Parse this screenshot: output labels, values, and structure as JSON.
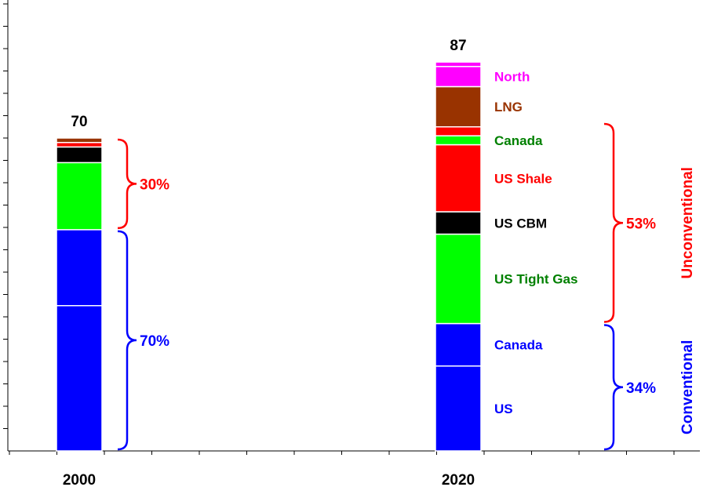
{
  "chart_data": {
    "type": "bar",
    "stacked": true,
    "categories": [
      "2000",
      "2020"
    ],
    "ylim": [
      0,
      100
    ],
    "colors": {
      "blue": "#0000ff",
      "green": "#00ff00",
      "black": "#000000",
      "red": "#ff0000",
      "brown": "#993300",
      "magenta": "#ff00ff",
      "label_green": "#008000"
    },
    "columns": [
      {
        "category": "2000",
        "total": 70,
        "segments": [
          {
            "name": "",
            "value": 32.5,
            "color": "#0000ff"
          },
          {
            "name": "",
            "value": 17,
            "color": "#0000ff"
          },
          {
            "name": "",
            "value": 15,
            "color": "#00ff00"
          },
          {
            "name": "",
            "value": 3.5,
            "color": "#000000"
          },
          {
            "name": "",
            "value": 1,
            "color": "#ff0000"
          },
          {
            "name": "",
            "value": 1,
            "color": "#993300"
          }
        ],
        "braces": [
          {
            "label": "70%",
            "from": 0,
            "to": 49.5,
            "color": "#0000ff"
          },
          {
            "label": "30%",
            "from": 49.5,
            "to": 70,
            "color": "#ff0000"
          }
        ]
      },
      {
        "category": "2020",
        "total": 87,
        "segments": [
          {
            "name": "US",
            "value": 19,
            "color": "#0000ff",
            "label_color": "#0000ff"
          },
          {
            "name": "Canada",
            "value": 9.5,
            "color": "#0000ff",
            "label_color": "#0000ff"
          },
          {
            "name": "US Tight Gas",
            "value": 20,
            "color": "#00ff00",
            "label_color": "#008000"
          },
          {
            "name": "US CBM",
            "value": 5,
            "color": "#000000",
            "label_color": "#000000"
          },
          {
            "name": "US Shale",
            "value": 15,
            "color": "#ff0000",
            "label_color": "#ff0000"
          },
          {
            "name": "Canada",
            "value": 2,
            "color": "#00ff00",
            "label_color": "#008000"
          },
          {
            "name": "",
            "value": 2,
            "color": "#ff0000",
            "label_color": "#ff0000"
          },
          {
            "name": "LNG",
            "value": 9,
            "color": "#993300",
            "label_color": "#993300"
          },
          {
            "name": "North",
            "value": 4.5,
            "color": "#ff00ff",
            "label_color": "#ff00ff"
          },
          {
            "name": "",
            "value": 1,
            "color": "#ff00ff",
            "label_color": "#ff00ff"
          }
        ],
        "braces": [
          {
            "label": "34%",
            "from": 0,
            "to": 28.5,
            "color": "#0000ff",
            "group": "Conventional"
          },
          {
            "label": "53%",
            "from": 28.5,
            "to": 73.5,
            "color": "#ff0000",
            "group": "Unconventional"
          }
        ]
      }
    ]
  }
}
